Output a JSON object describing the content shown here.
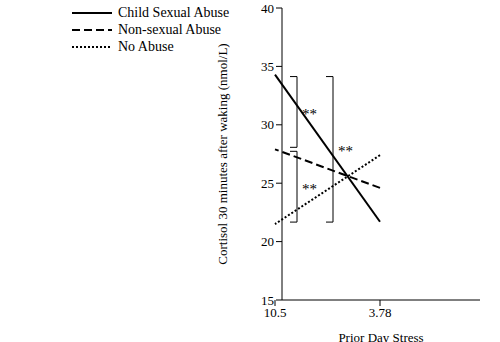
{
  "chart_data": {
    "type": "line",
    "x_label": "Prior Day Stress",
    "y_label": "Cortisol 30 minutes after waking (nmol/L)",
    "categories": [
      "3.78",
      "10.5"
    ],
    "ylim": [
      15,
      40
    ],
    "yticks": [
      15,
      20,
      25,
      30,
      35,
      40
    ],
    "grid": false,
    "legend": "top-left",
    "series": [
      {
        "name": "Child Sexual Abuse",
        "color": "#000000",
        "line_style": "solid",
        "values": [
          21.7,
          34.3
        ]
      },
      {
        "name": "Non-sexual Abuse",
        "color": "#000000",
        "line_style": "dashed",
        "values": [
          24.6,
          27.9
        ]
      },
      {
        "name": "No Abuse",
        "color": "#000000",
        "line_style": "dotted",
        "values": [
          27.4,
          21.5
        ]
      }
    ],
    "annotations": [
      {
        "text": "**",
        "between": [
          "Child Sexual Abuse",
          "Non-sexual Abuse"
        ]
      },
      {
        "text": "**",
        "between": [
          "Non-sexual Abuse",
          "No Abuse"
        ]
      },
      {
        "text": "**",
        "between": [
          "Child Sexual Abuse",
          "No Abuse"
        ]
      }
    ]
  }
}
